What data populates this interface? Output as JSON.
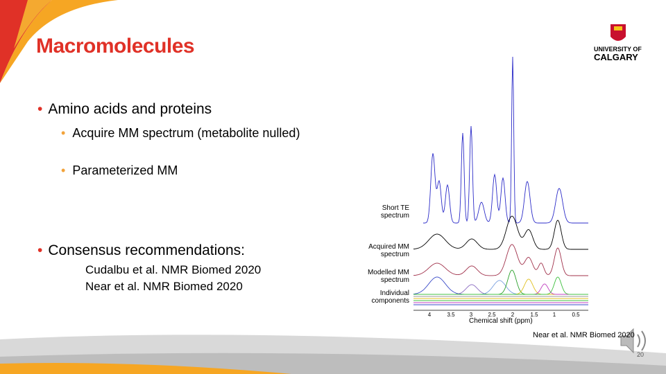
{
  "slide": {
    "title": "Macromolecules",
    "logo": {
      "line1": "UNIVERSITY OF",
      "line2": "CALGARY"
    },
    "bullets": [
      {
        "text": "Amino acids and proteins",
        "sub": [
          "Acquire MM spectrum (metabolite nulled)",
          "Parameterized MM"
        ]
      },
      {
        "text": "Consensus recommendations:",
        "refs": [
          "Cudalbu et al. NMR Biomed 2020",
          "Near et al. NMR Biomed 2020"
        ]
      }
    ],
    "figure": {
      "labels": [
        [
          "Short TE",
          "spectrum"
        ],
        [
          "Acquired MM",
          "spectrum"
        ],
        [
          "Modelled MM",
          "spectrum"
        ],
        [
          "Individual",
          "components"
        ]
      ],
      "ticks": [
        "4",
        "3.5",
        "3",
        "2.5",
        "2",
        "1.5",
        "1",
        "0.5"
      ],
      "xlabel": "Chemical shift (ppm)"
    },
    "citation": "Near et al. NMR Biomed 2020",
    "page": "20"
  }
}
